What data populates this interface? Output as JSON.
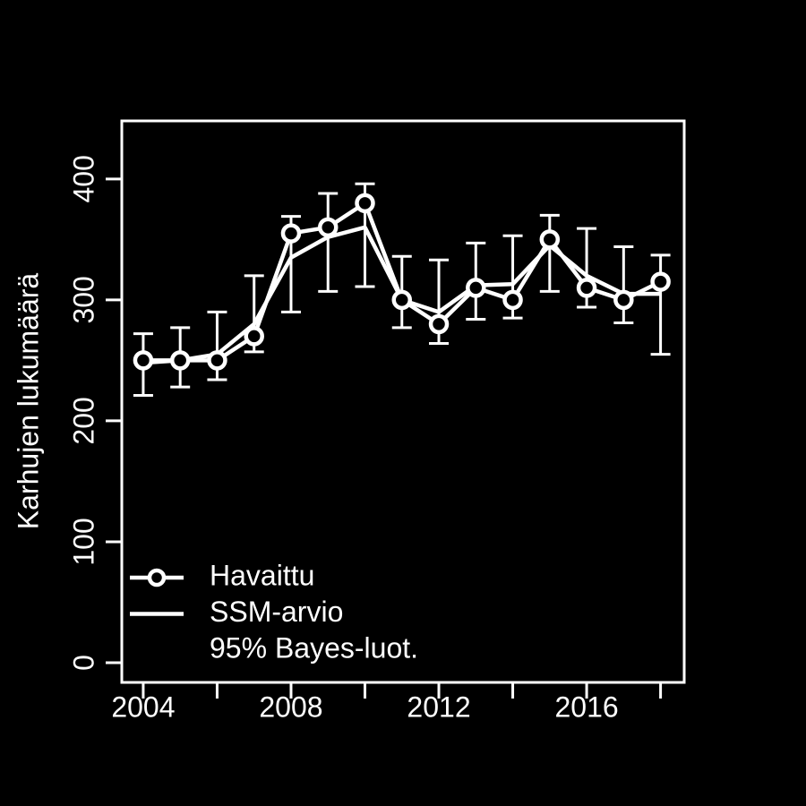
{
  "chart_data": {
    "type": "line",
    "y_label": "Karhujen lukumäärä",
    "x": [
      2004,
      2005,
      2006,
      2007,
      2008,
      2009,
      2010,
      2011,
      2012,
      2013,
      2014,
      2015,
      2016,
      2017,
      2018
    ],
    "series": [
      {
        "name": "Havaittu",
        "color": "#ffffff",
        "marker": "circle",
        "values": [
          250,
          250,
          250,
          270,
          355,
          360,
          380,
          300,
          280,
          310,
          300,
          350,
          310,
          300,
          315
        ]
      },
      {
        "name": "SSM-arvio",
        "color": "#ffffff",
        "values": [
          248,
          250,
          255,
          280,
          335,
          352,
          360,
          300,
          290,
          312,
          313,
          345,
          320,
          305,
          305
        ]
      },
      {
        "name": "95% Bayes-luot.",
        "color": "#ffffff",
        "lower": [
          221,
          228,
          234,
          257,
          290,
          307,
          311,
          277,
          264,
          284,
          285,
          307,
          294,
          281,
          255
        ],
        "upper": [
          272,
          277,
          290,
          320,
          369,
          388,
          396,
          336,
          333,
          347,
          353,
          370,
          359,
          344,
          337
        ]
      }
    ],
    "xlim": [
      2003.42,
      2018.64
    ],
    "ylim": [
      -16.3,
      448
    ],
    "xticks": [
      2004,
      2008,
      2012,
      2016
    ],
    "xminorticks": [
      2006,
      2010,
      2014,
      2018
    ],
    "yticks": [
      0,
      100,
      200,
      300,
      400
    ],
    "legend": "bottom-left"
  }
}
